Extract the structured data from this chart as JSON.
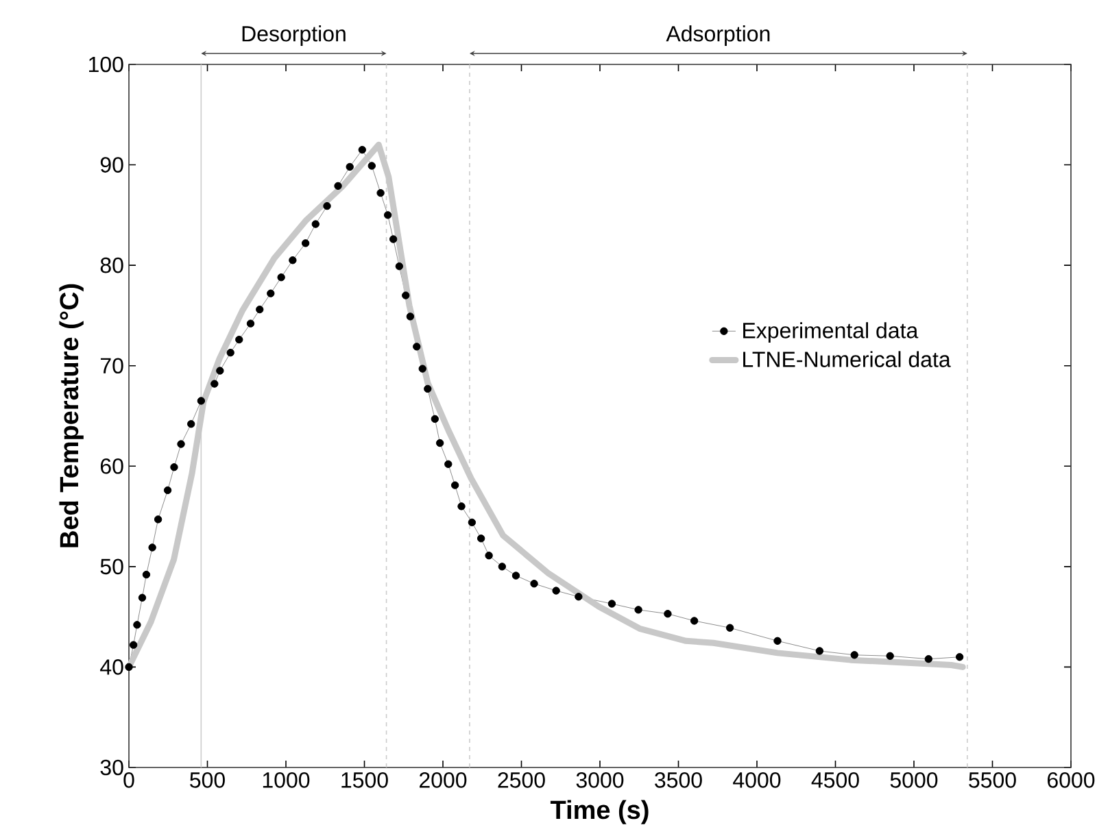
{
  "chart_data": {
    "type": "line",
    "xlabel": "Time (s)",
    "ylabel": "Bed Temperature (°C)",
    "xlim": [
      0,
      6000
    ],
    "xticks": [
      0,
      500,
      1000,
      1500,
      2000,
      2500,
      3000,
      3500,
      4000,
      4500,
      5000,
      5500,
      6000
    ],
    "ylim": [
      30,
      100
    ],
    "yticks": [
      30,
      40,
      50,
      60,
      70,
      80,
      90,
      100
    ],
    "grid": false,
    "legend": "right",
    "series": [
      {
        "name": "Experimental data",
        "color": "#000000",
        "marker": "circle",
        "line_style": "solid",
        "x": [
          0,
          29,
          52,
          85,
          111,
          149,
          186,
          247,
          288,
          332,
          396,
          460,
          545,
          580,
          647,
          702,
          775,
          833,
          903,
          970,
          1043,
          1125,
          1189,
          1262,
          1332,
          1407,
          1486,
          1547,
          1603,
          1649,
          1684,
          1722,
          1763,
          1792,
          1833,
          1870,
          1903,
          1949,
          1981,
          2034,
          2077,
          2118,
          2185,
          2243,
          2293,
          2377,
          2465,
          2581,
          2721,
          2864,
          3076,
          3245,
          3432,
          3601,
          3828,
          4131,
          4399,
          4621,
          4848,
          5093,
          5291
        ],
        "values": [
          40.0,
          42.2,
          44.2,
          46.9,
          49.2,
          51.9,
          54.7,
          57.6,
          59.9,
          62.2,
          64.2,
          66.5,
          68.2,
          69.5,
          71.3,
          72.6,
          74.2,
          75.6,
          77.2,
          78.8,
          80.5,
          82.2,
          84.1,
          85.9,
          87.9,
          89.8,
          91.5,
          89.9,
          87.2,
          85.0,
          82.6,
          79.9,
          77.0,
          74.9,
          71.9,
          69.7,
          67.7,
          64.7,
          62.3,
          60.2,
          58.1,
          56.0,
          54.4,
          52.8,
          51.1,
          50.0,
          49.1,
          48.3,
          47.6,
          47.0,
          46.3,
          45.7,
          45.3,
          44.6,
          43.9,
          42.6,
          41.6,
          41.2,
          41.1,
          40.8,
          41.0
        ]
      },
      {
        "name": "LTNE-Numerical data",
        "color": "#c8c8c8",
        "marker": "none",
        "line_style": "solid",
        "x": [
          0,
          140,
          286,
          402,
          475,
          577,
          723,
          926,
          1130,
          1363,
          1591,
          1654,
          1786,
          1903,
          2034,
          2179,
          2383,
          2674,
          2995,
          3257,
          3548,
          3723,
          4131,
          4597,
          5238,
          5311
        ],
        "values": [
          40.0,
          44.5,
          50.7,
          59.3,
          66.4,
          70.7,
          75.5,
          80.7,
          84.5,
          87.9,
          92.0,
          88.8,
          76.0,
          68.3,
          63.6,
          58.8,
          53.1,
          49.3,
          46.0,
          43.8,
          42.6,
          42.4,
          41.4,
          40.7,
          40.2,
          40.0
        ]
      }
    ],
    "ref_lines": [
      {
        "axis": "x",
        "value": 460,
        "color": "#cccccc",
        "line_style": "solid"
      },
      {
        "axis": "x",
        "value": 1640,
        "color": "#cccccc",
        "line_style": "dashed"
      },
      {
        "axis": "x",
        "value": 2170,
        "color": "#cccccc",
        "line_style": "dashed"
      },
      {
        "axis": "x",
        "value": 5340,
        "color": "#cccccc",
        "line_style": "dashed"
      }
    ],
    "annotations": [
      "Desorption",
      "Adsorption"
    ]
  }
}
